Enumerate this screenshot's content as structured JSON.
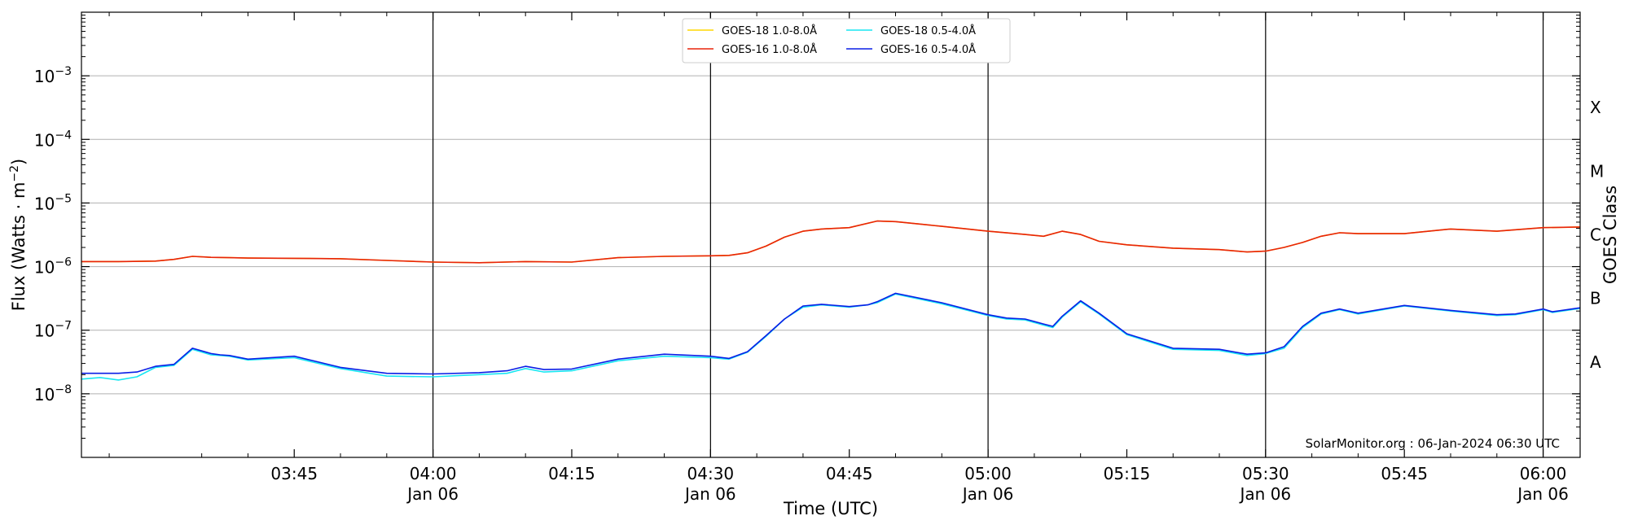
{
  "chart_data": {
    "type": "line",
    "xlabel": "Time (UTC)",
    "ylabel_main": "Flux (Watts · m",
    "ylabel_sup": "−2",
    "ylabel_close": ")",
    "right_label": "GOES Class",
    "credit": "SolarMonitor.org : 06-Jan-2024 06:30 UTC",
    "xlim": [
      "03:22",
      "06:04"
    ],
    "ylim_log10": [
      -9,
      -2
    ],
    "y_ticks": [
      {
        "exp": -8,
        "base": "10",
        "power": "−8"
      },
      {
        "exp": -7,
        "base": "10",
        "power": "−7"
      },
      {
        "exp": -6,
        "base": "10",
        "power": "−6"
      },
      {
        "exp": -5,
        "base": "10",
        "power": "−5"
      },
      {
        "exp": -4,
        "base": "10",
        "power": "−4"
      },
      {
        "exp": -3,
        "base": "10",
        "power": "−3"
      }
    ],
    "x_ticks": [
      {
        "time": "03:45",
        "label": "03:45",
        "sublabel": ""
      },
      {
        "time": "04:00",
        "label": "04:00",
        "sublabel": "Jan 06"
      },
      {
        "time": "04:15",
        "label": "04:15",
        "sublabel": ""
      },
      {
        "time": "04:30",
        "label": "04:30",
        "sublabel": "Jan 06"
      },
      {
        "time": "04:45",
        "label": "04:45",
        "sublabel": ""
      },
      {
        "time": "05:00",
        "label": "05:00",
        "sublabel": "Jan 06"
      },
      {
        "time": "05:15",
        "label": "05:15",
        "sublabel": ""
      },
      {
        "time": "05:30",
        "label": "05:30",
        "sublabel": "Jan 06"
      },
      {
        "time": "05:45",
        "label": "05:45",
        "sublabel": ""
      },
      {
        "time": "06:00",
        "label": "06:00",
        "sublabel": "Jan 06"
      }
    ],
    "vertical_lines": [
      "04:00",
      "04:30",
      "05:00",
      "05:30",
      "06:00"
    ],
    "flare_classes": [
      {
        "label": "A",
        "exp": -7.5
      },
      {
        "label": "B",
        "exp": -6.5
      },
      {
        "label": "C",
        "exp": -5.5
      },
      {
        "label": "M",
        "exp": -4.5
      },
      {
        "label": "X",
        "exp": -3.5
      }
    ],
    "grid": "horizontal",
    "legend_position": "top-center",
    "series": [
      {
        "name": "GOES-18 1.0-8.0Å",
        "color": "#ffd700",
        "x": [
          "03:22",
          "03:26",
          "03:30",
          "03:32",
          "03:34",
          "03:36",
          "03:38",
          "03:40",
          "03:45",
          "03:50",
          "03:55",
          "04:00",
          "04:05",
          "04:10",
          "04:15",
          "04:20",
          "04:25",
          "04:30",
          "04:32",
          "04:34",
          "04:36",
          "04:38",
          "04:40",
          "04:42",
          "04:45",
          "04:48",
          "04:50",
          "04:55",
          "05:00",
          "05:04",
          "05:06",
          "05:08",
          "05:10",
          "05:12",
          "05:15",
          "05:20",
          "05:25",
          "05:28",
          "05:30",
          "05:32",
          "05:34",
          "05:36",
          "05:38",
          "05:40",
          "05:45",
          "05:50",
          "05:55",
          "06:00",
          "06:04"
        ],
        "y": [
          1.2e-06,
          1.2e-06,
          1.22e-06,
          1.3e-06,
          1.45e-06,
          1.4e-06,
          1.38e-06,
          1.36e-06,
          1.35e-06,
          1.33e-06,
          1.25e-06,
          1.18e-06,
          1.15e-06,
          1.2e-06,
          1.18e-06,
          1.38e-06,
          1.45e-06,
          1.48e-06,
          1.5e-06,
          1.65e-06,
          2.1e-06,
          2.9e-06,
          3.6e-06,
          3.9e-06,
          4.1e-06,
          5.2e-06,
          5.1e-06,
          4.3e-06,
          3.6e-06,
          3.2e-06,
          3e-06,
          3.6e-06,
          3.2e-06,
          2.5e-06,
          2.2e-06,
          1.95e-06,
          1.85e-06,
          1.7e-06,
          1.75e-06,
          2e-06,
          2.4e-06,
          3e-06,
          3.4e-06,
          3.3e-06,
          3.3e-06,
          3.9e-06,
          3.6e-06,
          4.1e-06,
          4.2e-06
        ]
      },
      {
        "name": "GOES-16 1.0-8.0Å",
        "color": "#e8230a",
        "x": [
          "03:22",
          "03:26",
          "03:30",
          "03:32",
          "03:34",
          "03:36",
          "03:38",
          "03:40",
          "03:45",
          "03:50",
          "03:55",
          "04:00",
          "04:05",
          "04:10",
          "04:15",
          "04:20",
          "04:25",
          "04:30",
          "04:32",
          "04:34",
          "04:36",
          "04:38",
          "04:40",
          "04:42",
          "04:45",
          "04:48",
          "04:50",
          "04:55",
          "05:00",
          "05:04",
          "05:06",
          "05:08",
          "05:10",
          "05:12",
          "05:15",
          "05:20",
          "05:25",
          "05:28",
          "05:30",
          "05:32",
          "05:34",
          "05:36",
          "05:38",
          "05:40",
          "05:45",
          "05:50",
          "05:55",
          "06:00",
          "06:04"
        ],
        "y": [
          1.2e-06,
          1.2e-06,
          1.22e-06,
          1.3e-06,
          1.45e-06,
          1.4e-06,
          1.38e-06,
          1.36e-06,
          1.35e-06,
          1.33e-06,
          1.25e-06,
          1.18e-06,
          1.15e-06,
          1.2e-06,
          1.18e-06,
          1.38e-06,
          1.45e-06,
          1.48e-06,
          1.5e-06,
          1.65e-06,
          2.1e-06,
          2.9e-06,
          3.6e-06,
          3.9e-06,
          4.1e-06,
          5.2e-06,
          5.1e-06,
          4.3e-06,
          3.6e-06,
          3.2e-06,
          3e-06,
          3.6e-06,
          3.2e-06,
          2.5e-06,
          2.2e-06,
          1.95e-06,
          1.85e-06,
          1.7e-06,
          1.75e-06,
          2e-06,
          2.4e-06,
          3e-06,
          3.4e-06,
          3.3e-06,
          3.3e-06,
          3.9e-06,
          3.6e-06,
          4.1e-06,
          4.2e-06
        ]
      },
      {
        "name": "GOES-18 0.5-4.0Å",
        "color": "#18e6f2",
        "x": [
          "03:22",
          "03:24",
          "03:26",
          "03:28",
          "03:30",
          "03:32",
          "03:34",
          "03:36",
          "03:37",
          "03:38",
          "03:40",
          "03:45",
          "03:50",
          "03:55",
          "04:00",
          "04:05",
          "04:08",
          "04:10",
          "04:12",
          "04:15",
          "04:20",
          "04:25",
          "04:30",
          "04:32",
          "04:34",
          "04:36",
          "04:38",
          "04:40",
          "04:42",
          "04:45",
          "04:47",
          "04:48",
          "04:50",
          "04:55",
          "05:00",
          "05:02",
          "05:04",
          "05:06",
          "05:07",
          "05:08",
          "05:10",
          "05:12",
          "05:15",
          "05:20",
          "05:25",
          "05:28",
          "05:30",
          "05:32",
          "05:34",
          "05:36",
          "05:38",
          "05:40",
          "05:45",
          "05:50",
          "05:55",
          "05:57",
          "06:00",
          "06:01",
          "06:04"
        ],
        "y": [
          1.7e-08,
          1.8e-08,
          1.65e-08,
          1.85e-08,
          2.6e-08,
          2.8e-08,
          5e-08,
          4.1e-08,
          4e-08,
          3.9e-08,
          3.4e-08,
          3.7e-08,
          2.5e-08,
          1.9e-08,
          1.85e-08,
          2e-08,
          2.1e-08,
          2.5e-08,
          2.2e-08,
          2.3e-08,
          3.3e-08,
          3.9e-08,
          3.7e-08,
          3.5e-08,
          4.5e-08,
          8e-08,
          1.5e-07,
          2.3e-07,
          2.5e-07,
          2.3e-07,
          2.5e-07,
          2.7e-07,
          3.7e-07,
          2.6e-07,
          1.7e-07,
          1.5e-07,
          1.45e-07,
          1.2e-07,
          1.1e-07,
          1.6e-07,
          2.8e-07,
          1.8e-07,
          8.5e-08,
          5e-08,
          4.8e-08,
          4e-08,
          4.3e-08,
          5.2e-08,
          1.1e-07,
          1.8e-07,
          2.1e-07,
          1.8e-07,
          2.4e-07,
          2e-07,
          1.7e-07,
          1.75e-07,
          2.1e-07,
          1.9e-07,
          2.2e-07
        ]
      },
      {
        "name": "GOES-16 0.5-4.0Å",
        "color": "#0a1ee6",
        "x": [
          "03:22",
          "03:24",
          "03:26",
          "03:28",
          "03:30",
          "03:32",
          "03:34",
          "03:36",
          "03:37",
          "03:38",
          "03:40",
          "03:45",
          "03:50",
          "03:55",
          "04:00",
          "04:05",
          "04:08",
          "04:10",
          "04:12",
          "04:15",
          "04:20",
          "04:25",
          "04:30",
          "04:32",
          "04:34",
          "04:36",
          "04:38",
          "04:40",
          "04:42",
          "04:45",
          "04:47",
          "04:48",
          "04:50",
          "04:55",
          "05:00",
          "05:02",
          "05:04",
          "05:06",
          "05:07",
          "05:08",
          "05:10",
          "05:12",
          "05:15",
          "05:20",
          "05:25",
          "05:28",
          "05:30",
          "05:32",
          "05:34",
          "05:36",
          "05:38",
          "05:40",
          "05:45",
          "05:50",
          "05:55",
          "05:57",
          "06:00",
          "06:01",
          "06:04"
        ],
        "y": [
          2.1e-08,
          2.1e-08,
          2.1e-08,
          2.2e-08,
          2.7e-08,
          2.9e-08,
          5.2e-08,
          4.3e-08,
          4.1e-08,
          4e-08,
          3.5e-08,
          3.9e-08,
          2.6e-08,
          2.1e-08,
          2.05e-08,
          2.15e-08,
          2.3e-08,
          2.7e-08,
          2.4e-08,
          2.45e-08,
          3.5e-08,
          4.2e-08,
          3.9e-08,
          3.6e-08,
          4.6e-08,
          8.2e-08,
          1.5e-07,
          2.4e-07,
          2.55e-07,
          2.35e-07,
          2.5e-07,
          2.8e-07,
          3.8e-07,
          2.7e-07,
          1.75e-07,
          1.55e-07,
          1.5e-07,
          1.25e-07,
          1.15e-07,
          1.65e-07,
          2.9e-07,
          1.85e-07,
          8.8e-08,
          5.2e-08,
          5e-08,
          4.2e-08,
          4.4e-08,
          5.5e-08,
          1.15e-07,
          1.85e-07,
          2.15e-07,
          1.85e-07,
          2.45e-07,
          2.05e-07,
          1.75e-07,
          1.8e-07,
          2.15e-07,
          1.95e-07,
          2.25e-07
        ]
      }
    ]
  }
}
